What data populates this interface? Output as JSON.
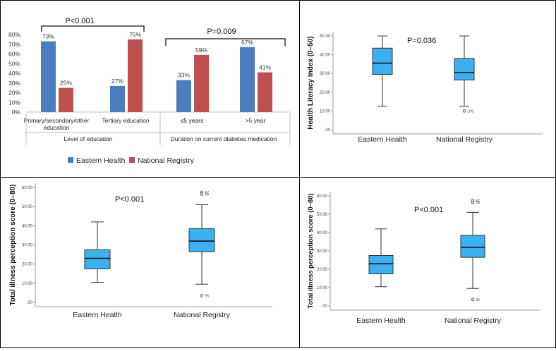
{
  "colors": {
    "eastern": "#4a7ebf",
    "national": "#c0504d",
    "box": "#3ab1f0",
    "axis": "#999999",
    "grid": "#d9d9d9"
  },
  "chart_data": [
    {
      "id": "education-duration-bars",
      "type": "bar",
      "legend": {
        "position": "bottom",
        "entries": [
          "Eastern Health",
          "National Registry"
        ]
      },
      "ylim": [
        0,
        80
      ],
      "yticks": [
        "0%",
        "10%",
        "20%",
        "30%",
        "40%",
        "50%",
        "60%",
        "70%",
        "80%"
      ],
      "categories": [
        "Primary/secondary/other education",
        "Tertiary education",
        "≤5 years",
        ">5 year"
      ],
      "category_lines": [
        [
          "Primary/secondary/other",
          "education"
        ],
        [
          "Tertiary education"
        ],
        [
          "≤5 years"
        ],
        [
          ">5 year"
        ]
      ],
      "groups": [
        {
          "label": "Level of education",
          "p_value": "P<0.001"
        },
        {
          "label": "Duration on current diabetes medication",
          "p_value": "P=0.009"
        }
      ],
      "series": [
        {
          "name": "Eastern Health",
          "values": [
            73,
            27,
            33,
            67
          ],
          "labels": [
            "73%",
            "27%",
            "33%",
            "67%"
          ]
        },
        {
          "name": "National Registry",
          "values": [
            25,
            75,
            59,
            41
          ],
          "labels": [
            "25%",
            "75%",
            "59%",
            "41%"
          ]
        }
      ]
    },
    {
      "id": "health-literacy-box",
      "type": "box",
      "ylabel": "Health Literacy Index (0–50)",
      "ylim": [
        0,
        50
      ],
      "yticks": [
        ".00",
        "10.00",
        "20.00",
        "30.00",
        "40.00",
        "50.00"
      ],
      "p_value": "P=0.036",
      "categories": [
        "Eastern Health",
        "National Registry"
      ],
      "boxes": [
        {
          "min": 12.5,
          "q1": 29.5,
          "median": 35.5,
          "q3": 43.5,
          "max": 50,
          "outliers": []
        },
        {
          "min": 12.5,
          "q1": 26.5,
          "median": 30.5,
          "q3": 38,
          "max": 50,
          "outliers": [
            {
              "value": 10,
              "label": "108"
            }
          ]
        }
      ]
    },
    {
      "id": "illness-perception-box-left",
      "type": "box",
      "ylabel": "Total illness perception score (0–80)",
      "ylim": [
        0,
        60
      ],
      "yticks": [
        ".00",
        "10.00",
        "20.00",
        "30.00",
        "40.00",
        "50.00",
        "60.00"
      ],
      "p_value": "P<0.001",
      "categories": [
        "Eastern Health",
        "National Registry"
      ],
      "boxes": [
        {
          "min": 10.5,
          "q1": 17.5,
          "median": 23,
          "q3": 27.5,
          "max": 42,
          "outliers": []
        },
        {
          "min": 9.5,
          "q1": 26.5,
          "median": 32,
          "q3": 38.5,
          "max": 51,
          "outliers": [
            {
              "value": 57.5,
              "label": "87"
            },
            {
              "value": 56.5,
              "label": "39"
            },
            {
              "value": 3.5,
              "label": "95"
            }
          ]
        }
      ]
    },
    {
      "id": "illness-perception-box-right",
      "type": "box",
      "ylabel": "Total illness perception score (0–80)",
      "ylim": [
        0,
        60
      ],
      "yticks": [
        ".00",
        "10.00",
        "20.00",
        "30.00",
        "40.00",
        "50.00",
        "60.00"
      ],
      "p_value": "P<0.001",
      "categories": [
        "Eastern Health",
        "National Registry"
      ],
      "boxes": [
        {
          "min": 10.5,
          "q1": 17.5,
          "median": 23,
          "q3": 27.5,
          "max": 42,
          "outliers": []
        },
        {
          "min": 9.5,
          "q1": 26.5,
          "median": 32,
          "q3": 38.5,
          "max": 51,
          "outliers": [
            {
              "value": 57.5,
              "label": "87"
            },
            {
              "value": 56.5,
              "label": "39"
            },
            {
              "value": 3.5,
              "label": "95"
            }
          ]
        }
      ]
    }
  ]
}
